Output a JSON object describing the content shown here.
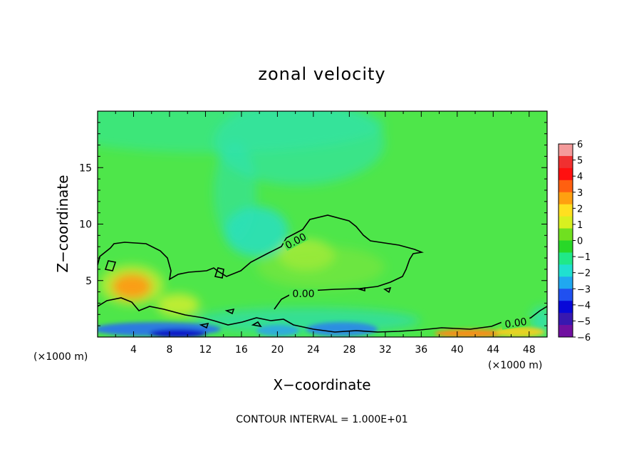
{
  "chart_data": {
    "type": "heatmap",
    "title": "zonal velocity",
    "xlabel": "X−coordinate",
    "ylabel": "Z−coordinate",
    "x_unit_left": "(×1000 m)",
    "x_unit_right": "(×1000 m)",
    "footer": "CONTOUR INTERVAL = 1.000E+01",
    "xlim": [
      0,
      50
    ],
    "ylim": [
      0,
      20
    ],
    "x_ticks": [
      "4",
      "8",
      "12",
      "16",
      "20",
      "24",
      "28",
      "32",
      "36",
      "40",
      "44",
      "48"
    ],
    "y_ticks": [
      "5",
      "10",
      "15"
    ],
    "contour_labels": [
      "0.00",
      "0.00",
      "0.00"
    ],
    "colorbar": {
      "labels": [
        "6",
        "5",
        "4",
        "3",
        "2",
        "1",
        "0",
        "−1",
        "−2",
        "−3",
        "−4",
        "−5",
        "−6"
      ],
      "colors": [
        "#f49a9a",
        "#f03030",
        "#ff1010",
        "#ff6010",
        "#ffa010",
        "#ffe020",
        "#d8f020",
        "#70e020",
        "#28d828",
        "#20e888",
        "#20e0d0",
        "#20a8f0",
        "#2050f0",
        "#0808d8",
        "#3818b0",
        "#7010a0"
      ]
    },
    "features": [
      {
        "kind": "max",
        "x": 4.5,
        "z": 4.5,
        "value": 3
      },
      {
        "kind": "max",
        "x": 9.5,
        "z": 2.8,
        "value": 1.5
      },
      {
        "kind": "max",
        "x": 23,
        "z": 7.2,
        "value": 1.2
      },
      {
        "kind": "max",
        "x": 44,
        "z": 0.5,
        "value": 3
      },
      {
        "kind": "min",
        "x": 18,
        "z": 9.5,
        "value": -1.5
      },
      {
        "kind": "min",
        "x": 12,
        "z": 0.3,
        "value": -5
      },
      {
        "kind": "min",
        "x": 22,
        "z": 0.6,
        "value": -3
      },
      {
        "kind": "min",
        "x": 30,
        "z": 0.5,
        "value": -3
      }
    ]
  }
}
